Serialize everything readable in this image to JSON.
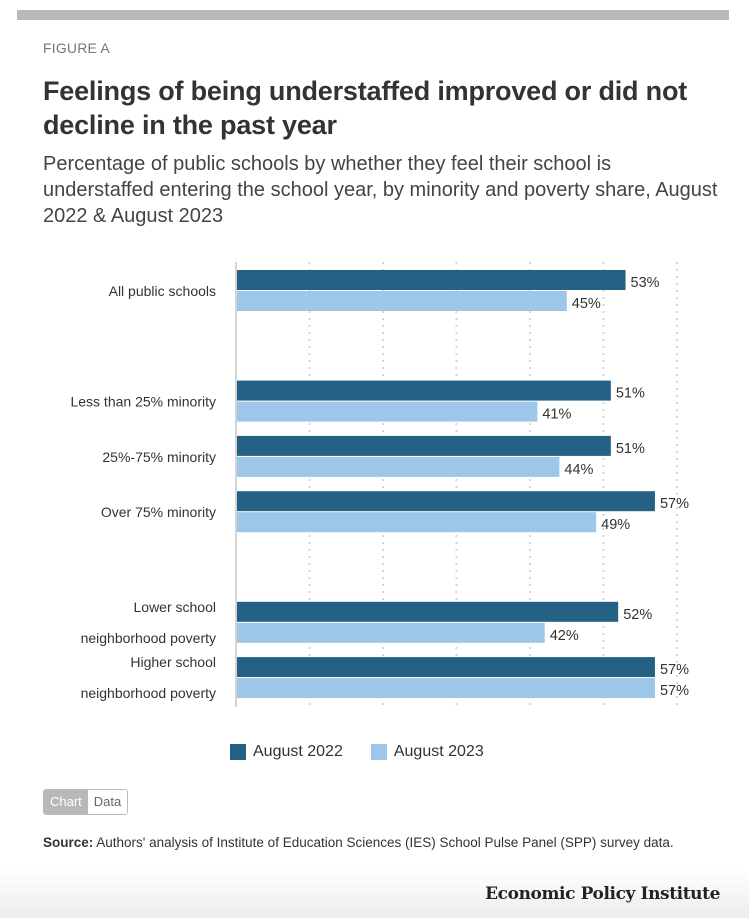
{
  "figure_label": "FIGURE A",
  "title": "Feelings of being understaffed improved or did not decline in the past year",
  "subtitle": "Percentage of public schools by whether they feel their school is understaffed entering the school year, by minority and poverty share, August 2022 & August 2023",
  "toggle": {
    "chart_label": "Chart",
    "data_label": "Data",
    "active": "Chart"
  },
  "source": {
    "label": "Source:",
    "text": " Authors' analysis of Institute of Education Sciences (IES) School Pulse Panel (SPP) survey data."
  },
  "brand": "Economic Policy Institute",
  "colors": {
    "aug2022": "#256184",
    "aug2023": "#9dc6e8"
  },
  "chart_data": {
    "type": "bar",
    "orientation": "horizontal",
    "title": "Feelings of being understaffed improved or did not decline in the past year",
    "xlabel": "",
    "ylabel": "",
    "xlim": [
      0,
      60
    ],
    "grid": true,
    "legend_position": "bottom",
    "categories": [
      [
        "All public schools"
      ],
      null,
      [
        "Less than 25% minority"
      ],
      [
        "25%-75% minority"
      ],
      [
        "Over 75% minority"
      ],
      null,
      [
        "Lower school",
        "neighborhood poverty"
      ],
      [
        "Higher school",
        "neighborhood poverty"
      ]
    ],
    "series": [
      {
        "name": "August 2022",
        "values": [
          53,
          null,
          51,
          51,
          57,
          null,
          52,
          57
        ],
        "labels": [
          "53%",
          null,
          "51%",
          "51%",
          "57%",
          null,
          "52%",
          "57%"
        ]
      },
      {
        "name": "August 2023",
        "values": [
          45,
          null,
          41,
          44,
          49,
          null,
          42,
          57
        ],
        "labels": [
          "45%",
          null,
          "41%",
          "44%",
          "49%",
          null,
          "42%",
          "57%"
        ]
      }
    ]
  }
}
